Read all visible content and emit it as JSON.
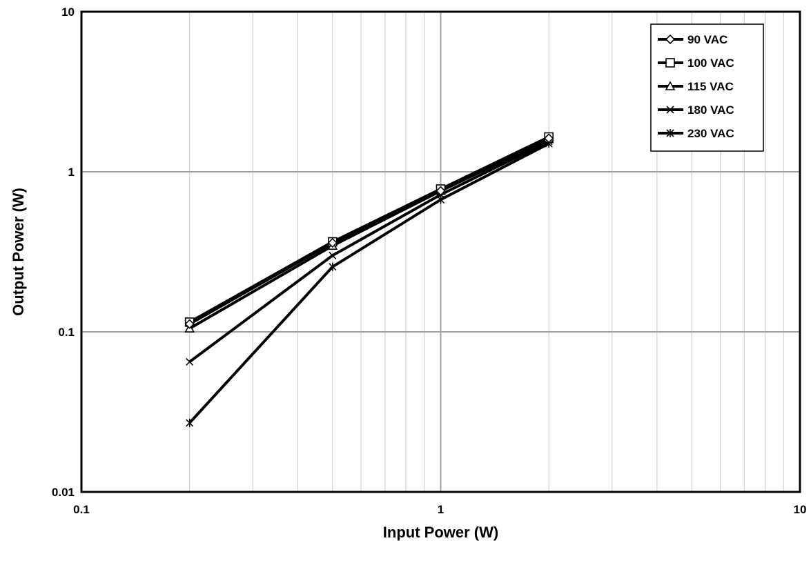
{
  "chart_data": {
    "type": "line",
    "xlabel": "Input Power (W)",
    "ylabel": "Output Power (W)",
    "xscale": "log",
    "yscale": "log",
    "xlim": [
      0.1,
      10
    ],
    "ylim": [
      0.01,
      10
    ],
    "x_ticks": [
      "0.1",
      "1",
      "10"
    ],
    "y_ticks": [
      "0.01",
      "0.1",
      "1",
      "10"
    ],
    "grid": true,
    "legend_position": "top-right",
    "series": [
      {
        "name": "90 VAC",
        "marker": "diamond",
        "x": [
          0.2,
          0.5,
          1.0,
          2.0
        ],
        "y": [
          0.112,
          0.36,
          0.76,
          1.62
        ]
      },
      {
        "name": "100 VAC",
        "marker": "square",
        "x": [
          0.2,
          0.5,
          1.0,
          2.0
        ],
        "y": [
          0.115,
          0.365,
          0.78,
          1.65
        ]
      },
      {
        "name": "115 VAC",
        "marker": "triangle",
        "x": [
          0.2,
          0.5,
          1.0,
          2.0
        ],
        "y": [
          0.105,
          0.345,
          0.76,
          1.6
        ]
      },
      {
        "name": "180 VAC",
        "marker": "x",
        "x": [
          0.2,
          0.5,
          1.0,
          2.0
        ],
        "y": [
          0.065,
          0.3,
          0.72,
          1.55
        ]
      },
      {
        "name": "230 VAC",
        "marker": "star",
        "x": [
          0.2,
          0.5,
          1.0,
          2.0
        ],
        "y": [
          0.027,
          0.255,
          0.67,
          1.5
        ]
      }
    ]
  }
}
